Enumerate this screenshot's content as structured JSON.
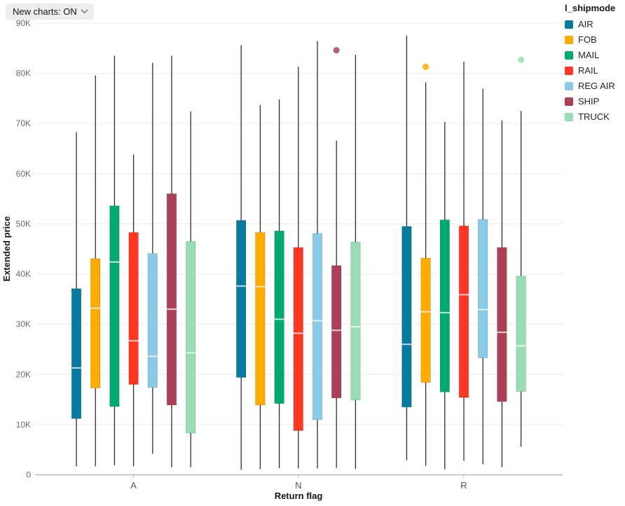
{
  "controls": {
    "new_charts_label": "New charts: ON"
  },
  "chart_data": {
    "type": "box",
    "title": "",
    "xlabel": "Return flag",
    "ylabel": "Extended price",
    "legend_title": "l_shipmode",
    "legend_position": "top-right",
    "grid": "horizontal",
    "categories": [
      "A",
      "N",
      "R"
    ],
    "y_ticks": [
      "0",
      "10K",
      "20K",
      "30K",
      "40K",
      "50K",
      "60K",
      "70K",
      "80K",
      "90K"
    ],
    "ylim": [
      0,
      90000
    ],
    "series": [
      {
        "name": "AIR",
        "color": "#077A9D",
        "boxes": [
          {
            "category": "A",
            "low": 1700,
            "q1": 11200,
            "median": 21300,
            "q3": 37100,
            "high": 68300,
            "outliers": []
          },
          {
            "category": "N",
            "low": 1000,
            "q1": 19400,
            "median": 37600,
            "q3": 50700,
            "high": 85600,
            "outliers": []
          },
          {
            "category": "R",
            "low": 2900,
            "q1": 13500,
            "median": 26000,
            "q3": 49500,
            "high": 87500,
            "outliers": []
          }
        ]
      },
      {
        "name": "FOB",
        "color": "#FFAB00",
        "boxes": [
          {
            "category": "A",
            "low": 1700,
            "q1": 17300,
            "median": 33200,
            "q3": 43100,
            "high": 79600,
            "outliers": []
          },
          {
            "category": "N",
            "low": 1100,
            "q1": 13900,
            "median": 37500,
            "q3": 48300,
            "high": 73700,
            "outliers": []
          },
          {
            "category": "R",
            "low": 1800,
            "q1": 18400,
            "median": 32500,
            "q3": 43200,
            "high": 78200,
            "outliers": [
              81300
            ]
          }
        ]
      },
      {
        "name": "MAIL",
        "color": "#00A972",
        "boxes": [
          {
            "category": "A",
            "low": 1900,
            "q1": 13600,
            "median": 42400,
            "q3": 53600,
            "high": 83500,
            "outliers": []
          },
          {
            "category": "N",
            "low": 1300,
            "q1": 14200,
            "median": 31000,
            "q3": 48600,
            "high": 74800,
            "outliers": []
          },
          {
            "category": "R",
            "low": 1100,
            "q1": 16500,
            "median": 32300,
            "q3": 50800,
            "high": 70300,
            "outliers": []
          }
        ]
      },
      {
        "name": "RAIL",
        "color": "#FF3621",
        "boxes": [
          {
            "category": "A",
            "low": 1700,
            "q1": 18000,
            "median": 26700,
            "q3": 48300,
            "high": 63800,
            "outliers": []
          },
          {
            "category": "N",
            "low": 1300,
            "q1": 8800,
            "median": 28200,
            "q3": 45300,
            "high": 81300,
            "outliers": []
          },
          {
            "category": "R",
            "low": 2800,
            "q1": 15400,
            "median": 35900,
            "q3": 49600,
            "high": 82300,
            "outliers": []
          }
        ]
      },
      {
        "name": "REG AIR",
        "color": "#8BCAE7",
        "boxes": [
          {
            "category": "A",
            "low": 4200,
            "q1": 17400,
            "median": 23600,
            "q3": 44100,
            "high": 82100,
            "outliers": []
          },
          {
            "category": "N",
            "low": 1300,
            "q1": 11000,
            "median": 30700,
            "q3": 48100,
            "high": 86400,
            "outliers": []
          },
          {
            "category": "R",
            "low": 2100,
            "q1": 23300,
            "median": 32900,
            "q3": 50900,
            "high": 76900,
            "outliers": []
          }
        ]
      },
      {
        "name": "SHIP",
        "color": "#AB4057",
        "boxes": [
          {
            "category": "A",
            "low": 1500,
            "q1": 13900,
            "median": 33000,
            "q3": 56000,
            "high": 83500,
            "outliers": []
          },
          {
            "category": "N",
            "low": 1400,
            "q1": 15300,
            "median": 28800,
            "q3": 41700,
            "high": 66600,
            "outliers": [
              84600
            ]
          },
          {
            "category": "R",
            "low": 1500,
            "q1": 14600,
            "median": 28400,
            "q3": 45300,
            "high": 70600,
            "outliers": []
          }
        ]
      },
      {
        "name": "TRUCK",
        "color": "#99DDB4",
        "boxes": [
          {
            "category": "A",
            "low": 1500,
            "q1": 8300,
            "median": 24300,
            "q3": 46500,
            "high": 72400,
            "outliers": []
          },
          {
            "category": "N",
            "low": 1200,
            "q1": 14900,
            "median": 29500,
            "q3": 46400,
            "high": 83700,
            "outliers": []
          },
          {
            "category": "R",
            "low": 5600,
            "q1": 16600,
            "median": 25700,
            "q3": 39600,
            "high": 72500,
            "outliers": [
              82700
            ]
          }
        ]
      }
    ]
  }
}
